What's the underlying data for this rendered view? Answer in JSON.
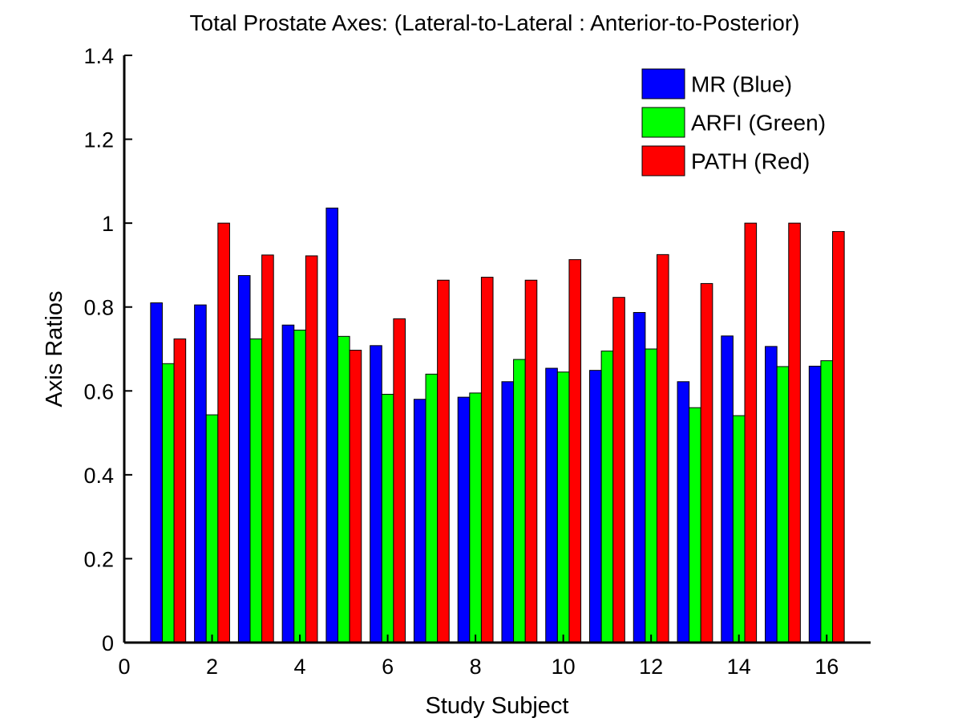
{
  "chart_data": {
    "type": "bar",
    "title": "Total Prostate Axes: (Lateral-to-Lateral : Anterior-to-Posterior)",
    "xlabel": "Study Subject",
    "ylabel": "Axis Ratios",
    "xlim": [
      0,
      17
    ],
    "ylim": [
      0,
      1.4
    ],
    "xticks": [
      0,
      2,
      4,
      6,
      8,
      10,
      12,
      14,
      16
    ],
    "xtick_labels": [
      "0",
      "2",
      "4",
      "6",
      "8",
      "10",
      "12",
      "14",
      "16"
    ],
    "yticks": [
      0,
      0.2,
      0.4,
      0.6,
      0.8,
      1,
      1.2,
      1.4
    ],
    "ytick_labels": [
      "0",
      "0.2",
      "0.4",
      "0.6",
      "0.8",
      "1",
      "1.2",
      "1.4"
    ],
    "grid": false,
    "legend_position": "top-right",
    "categories": [
      1,
      2,
      3,
      4,
      5,
      6,
      7,
      8,
      9,
      10,
      11,
      12,
      13,
      14,
      15,
      16
    ],
    "series": [
      {
        "name": "MR (Blue)",
        "color": "#0000ff",
        "values": [
          0.81,
          0.805,
          0.875,
          0.757,
          1.036,
          0.708,
          0.58,
          0.585,
          0.622,
          0.654,
          0.649,
          0.787,
          0.622,
          0.731,
          0.706,
          0.659
        ]
      },
      {
        "name": "ARFI (Green)",
        "color": "#00ff00",
        "values": [
          0.665,
          0.543,
          0.724,
          0.745,
          0.73,
          0.592,
          0.64,
          0.595,
          0.675,
          0.645,
          0.695,
          0.7,
          0.56,
          0.541,
          0.658,
          0.672
        ]
      },
      {
        "name": "PATH (Red)",
        "color": "#ff0000",
        "values": [
          0.724,
          1.0,
          0.924,
          0.922,
          0.697,
          0.772,
          0.864,
          0.871,
          0.864,
          0.913,
          0.823,
          0.925,
          0.856,
          1.0,
          1.0,
          0.98
        ]
      }
    ]
  }
}
